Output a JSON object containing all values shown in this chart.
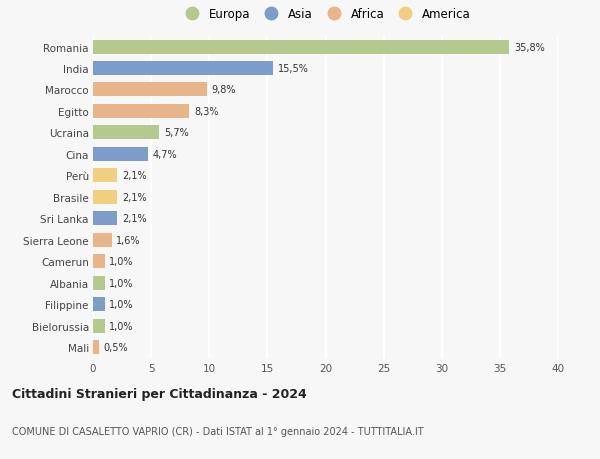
{
  "countries": [
    "Romania",
    "India",
    "Marocco",
    "Egitto",
    "Ucraina",
    "Cina",
    "Perù",
    "Brasile",
    "Sri Lanka",
    "Sierra Leone",
    "Camerun",
    "Albania",
    "Filippine",
    "Bielorussia",
    "Mali"
  ],
  "values": [
    35.8,
    15.5,
    9.8,
    8.3,
    5.7,
    4.7,
    2.1,
    2.1,
    2.1,
    1.6,
    1.0,
    1.0,
    1.0,
    1.0,
    0.5
  ],
  "labels": [
    "35,8%",
    "15,5%",
    "9,8%",
    "8,3%",
    "5,7%",
    "4,7%",
    "2,1%",
    "2,1%",
    "2,1%",
    "1,6%",
    "1,0%",
    "1,0%",
    "1,0%",
    "1,0%",
    "0,5%"
  ],
  "continents": [
    "Europa",
    "Asia",
    "Africa",
    "Africa",
    "Europa",
    "Asia",
    "America",
    "America",
    "Asia",
    "Africa",
    "Africa",
    "Europa",
    "Asia",
    "Europa",
    "Africa"
  ],
  "continent_colors": {
    "Europa": "#b5c98e",
    "Asia": "#7b9dc7",
    "Africa": "#e8b48a",
    "America": "#f0d080"
  },
  "legend_order": [
    "Europa",
    "Asia",
    "Africa",
    "America"
  ],
  "title": "Cittadini Stranieri per Cittadinanza - 2024",
  "subtitle": "COMUNE DI CASALETTO VAPRIO (CR) - Dati ISTAT al 1° gennaio 2024 - TUTTITALIA.IT",
  "xlim": [
    0,
    40
  ],
  "xticks": [
    0,
    5,
    10,
    15,
    20,
    25,
    30,
    35,
    40
  ],
  "bg_color": "#f7f7f7",
  "grid_color": "#ffffff",
  "bar_height": 0.65
}
